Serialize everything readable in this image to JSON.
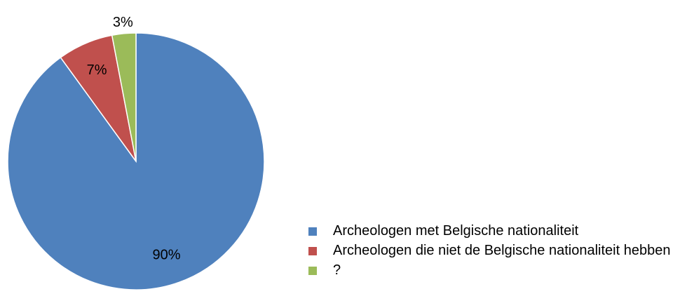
{
  "chart_data": {
    "type": "pie",
    "categories": [
      "Archeologen met Belgische nationaliteit",
      "Archeologen die niet de Belgische nationaliteit hebben",
      "?"
    ],
    "values": [
      90,
      7,
      3
    ],
    "value_labels": [
      "90%",
      "7%",
      "3%"
    ],
    "colors": [
      "#4f81bd",
      "#c0504d",
      "#9bbb59"
    ]
  }
}
